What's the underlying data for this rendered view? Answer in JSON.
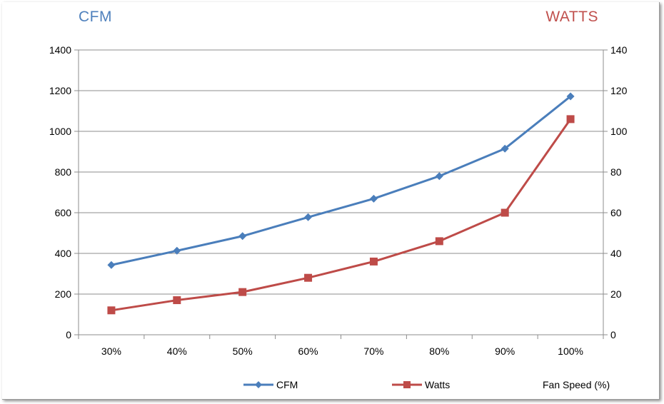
{
  "chart_data": {
    "type": "line",
    "categories": [
      "30%",
      "40%",
      "50%",
      "60%",
      "70%",
      "80%",
      "90%",
      "100%"
    ],
    "series": [
      {
        "name": "CFM",
        "axis": "left",
        "color": "#4a7ebb",
        "marker": "diamond",
        "values": [
          343,
          413,
          485,
          578,
          669,
          780,
          915,
          1172
        ]
      },
      {
        "name": "Watts",
        "axis": "right",
        "color": "#be4b48",
        "marker": "square",
        "values": [
          12,
          17,
          21,
          28,
          36,
          46,
          60,
          106
        ]
      }
    ],
    "y_left": {
      "label": "CFM",
      "color": "#4f81bd",
      "min": 0,
      "max": 1400,
      "step": 200,
      "ticks": [
        "0",
        "200",
        "400",
        "600",
        "800",
        "1000",
        "1200",
        "1400"
      ]
    },
    "y_right": {
      "label": "WATTS",
      "color": "#c0504d",
      "min": 0,
      "max": 140,
      "step": 20,
      "ticks": [
        "0",
        "20",
        "40",
        "60",
        "80",
        "100",
        "120",
        "140"
      ]
    },
    "xlabel": "Fan Speed (%)",
    "grid": true,
    "legend_position": "bottom"
  }
}
